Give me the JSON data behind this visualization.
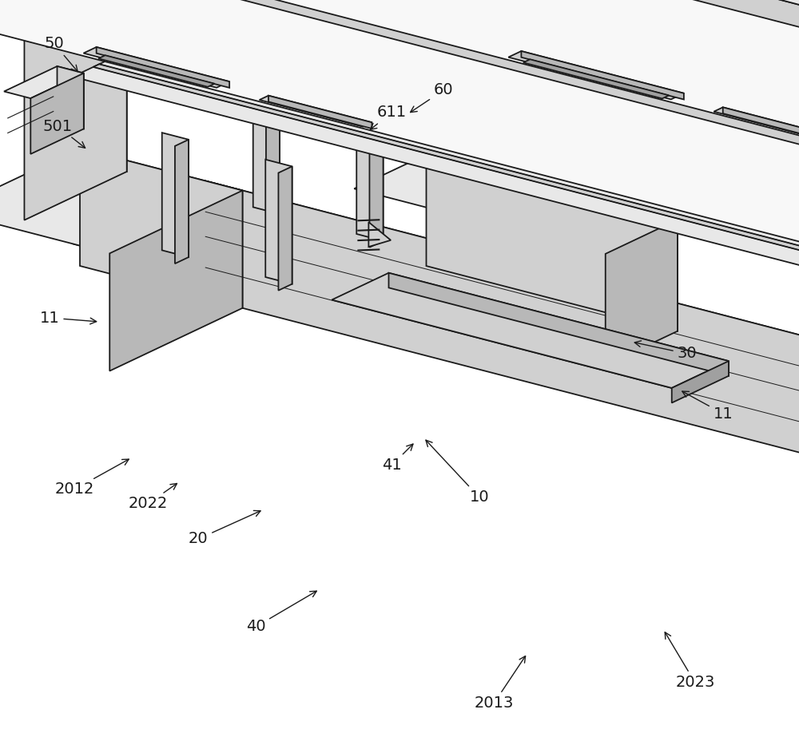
{
  "background_color": "#ffffff",
  "line_color": "#1a1a1a",
  "figsize": [
    10.0,
    9.33
  ],
  "dpi": 100,
  "labels": {
    "10": {
      "text": "10",
      "txt": [
        600,
        310
      ],
      "arr": [
        530,
        385
      ]
    },
    "11a": {
      "text": "11",
      "txt": [
        905,
        415
      ],
      "arr": [
        850,
        445
      ]
    },
    "11b": {
      "text": "11",
      "txt": [
        62,
        535
      ],
      "arr": [
        125,
        530
      ]
    },
    "20": {
      "text": "20",
      "txt": [
        248,
        258
      ],
      "arr": [
        330,
        295
      ]
    },
    "30": {
      "text": "30",
      "txt": [
        860,
        490
      ],
      "arr": [
        790,
        505
      ]
    },
    "40": {
      "text": "40",
      "txt": [
        320,
        148
      ],
      "arr": [
        400,
        195
      ]
    },
    "41": {
      "text": "41",
      "txt": [
        490,
        350
      ],
      "arr": [
        520,
        380
      ]
    },
    "50": {
      "text": "50",
      "txt": [
        68,
        878
      ],
      "arr": [
        100,
        840
      ]
    },
    "501": {
      "text": "501",
      "txt": [
        72,
        775
      ],
      "arr": [
        110,
        745
      ]
    },
    "60": {
      "text": "60",
      "txt": [
        555,
        820
      ],
      "arr": [
        510,
        790
      ]
    },
    "611": {
      "text": "611",
      "txt": [
        490,
        792
      ],
      "arr": [
        460,
        768
      ]
    },
    "2012": {
      "text": "2012",
      "txt": [
        93,
        320
      ],
      "arr": [
        165,
        360
      ]
    },
    "2013": {
      "text": "2013",
      "txt": [
        618,
        52
      ],
      "arr": [
        660,
        115
      ]
    },
    "2022": {
      "text": "2022",
      "txt": [
        185,
        302
      ],
      "arr": [
        225,
        330
      ]
    },
    "2023": {
      "text": "2023",
      "txt": [
        870,
        78
      ],
      "arr": [
        830,
        145
      ]
    }
  }
}
